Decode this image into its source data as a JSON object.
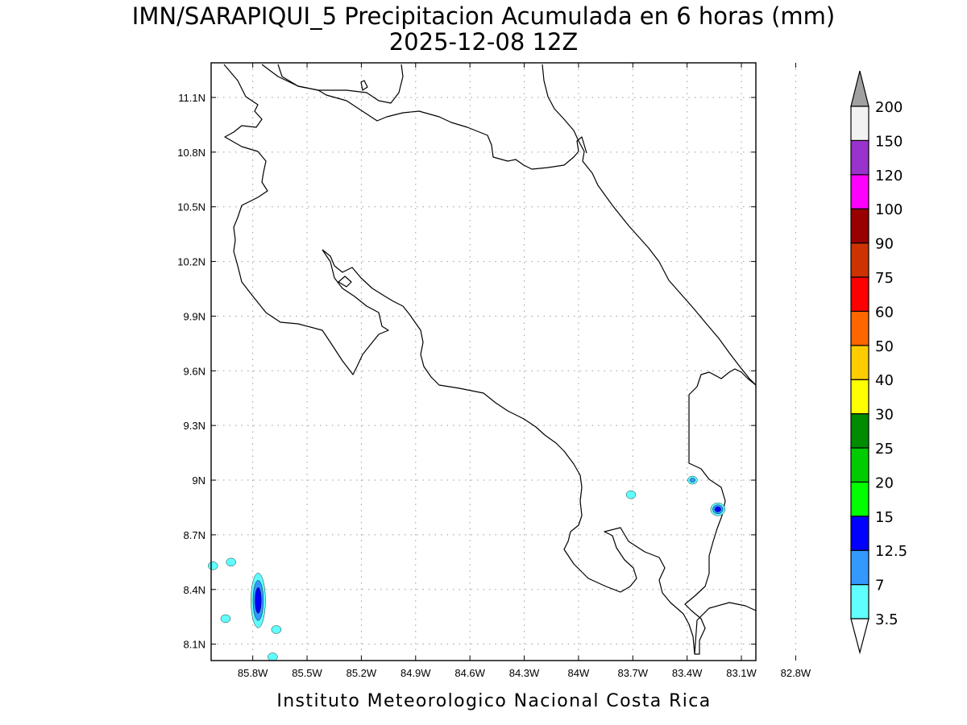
{
  "title": {
    "line1": "IMN/SARAPIQUI_5 Precipitacion Acumulada en 6 horas (mm)",
    "line2": "2025-12-08 12Z"
  },
  "credit": "Instituto Meteorologico Nacional Costa Rica",
  "map": {
    "lon_ticks": [
      {
        "value": -85.8,
        "label": "85.8W"
      },
      {
        "value": -85.5,
        "label": "85.5W"
      },
      {
        "value": -85.2,
        "label": "85.2W"
      },
      {
        "value": -84.9,
        "label": "84.9W"
      },
      {
        "value": -84.6,
        "label": "84.6W"
      },
      {
        "value": -84.3,
        "label": "84.3W"
      },
      {
        "value": -84.0,
        "label": "84W"
      },
      {
        "value": -83.7,
        "label": "83.7W"
      },
      {
        "value": -83.4,
        "label": "83.4W"
      },
      {
        "value": -83.1,
        "label": "83.1W"
      },
      {
        "value": -82.8,
        "label": "82.8W"
      }
    ],
    "lat_ticks": [
      {
        "value": 11.1,
        "label": "11.1N"
      },
      {
        "value": 10.8,
        "label": "10.8N"
      },
      {
        "value": 10.5,
        "label": "10.5N"
      },
      {
        "value": 10.2,
        "label": "10.2N"
      },
      {
        "value": 9.9,
        "label": "9.9N"
      },
      {
        "value": 9.6,
        "label": "9.6N"
      },
      {
        "value": 9.3,
        "label": "9.3N"
      },
      {
        "value": 9.0,
        "label": "9N"
      },
      {
        "value": 8.7,
        "label": "8.7N"
      },
      {
        "value": 8.4,
        "label": "8.4N"
      },
      {
        "value": 8.1,
        "label": "8.1N"
      }
    ],
    "lon_range": [
      -86.03,
      -83.02
    ],
    "lat_range": [
      8.01,
      11.29
    ],
    "grid": true
  },
  "colorbar": {
    "levels": [
      "3.5",
      "7",
      "12.5",
      "15",
      "20",
      "25",
      "30",
      "40",
      "50",
      "60",
      "75",
      "90",
      "100",
      "120",
      "150",
      "200"
    ],
    "colors": [
      "#60ffff",
      "#3399ff",
      "#0000ff",
      "#00ff00",
      "#00cc00",
      "#008c00",
      "#ffff00",
      "#ffcc00",
      "#ff6600",
      "#ff0000",
      "#cc3300",
      "#990000",
      "#ff00ff",
      "#9933cc",
      "#f2f2f2"
    ],
    "over_color": "#a0a0a0",
    "under_color": "#ffffff"
  },
  "precip_cells": [
    {
      "lon": -85.77,
      "lat": 8.34,
      "max_mm": 12.5
    },
    {
      "lon": -85.95,
      "lat": 8.24,
      "max_mm": 3.5
    },
    {
      "lon": -85.67,
      "lat": 8.18,
      "max_mm": 3.5
    },
    {
      "lon": -85.69,
      "lat": 8.03,
      "max_mm": 3.5
    },
    {
      "lon": -85.92,
      "lat": 8.55,
      "max_mm": 3.5
    },
    {
      "lon": -86.02,
      "lat": 8.53,
      "max_mm": 3.5
    },
    {
      "lon": -83.71,
      "lat": 8.92,
      "max_mm": 3.5
    },
    {
      "lon": -83.37,
      "lat": 9.0,
      "max_mm": 7
    },
    {
      "lon": -83.23,
      "lat": 8.84,
      "max_mm": 12.5
    }
  ]
}
